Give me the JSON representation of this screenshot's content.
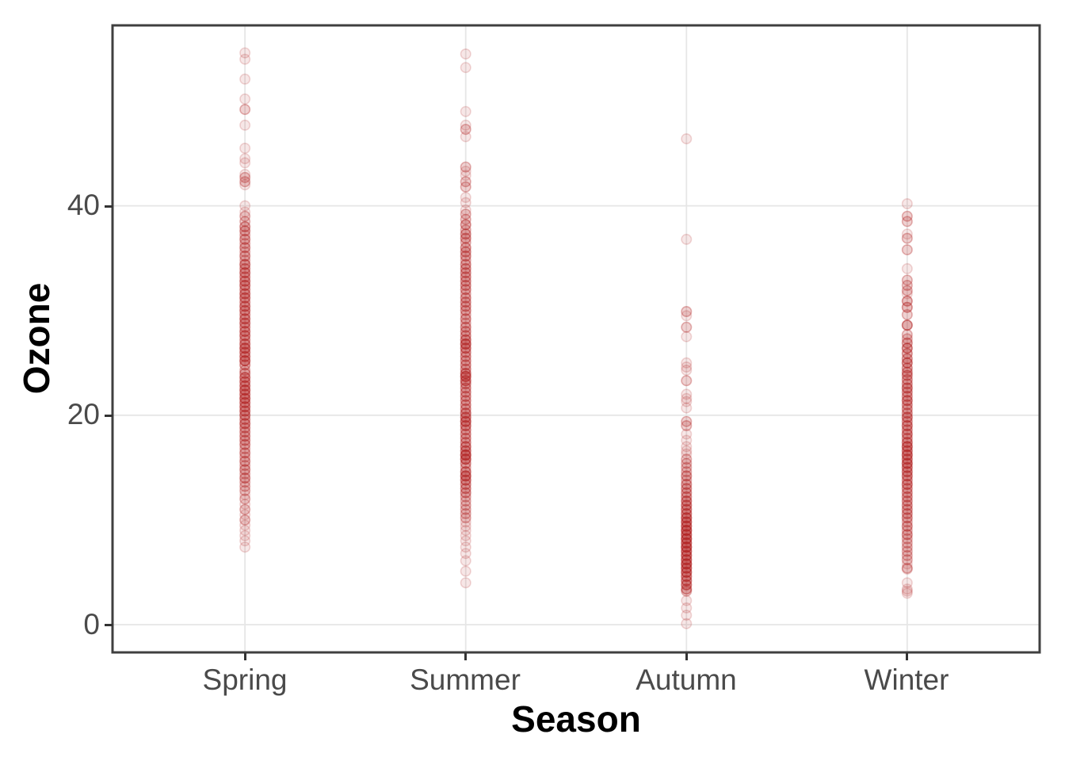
{
  "chart_data": {
    "type": "scatter",
    "subtype": "strip-plot-overplotted",
    "title": "",
    "xlabel": "Season",
    "ylabel": "Ozone",
    "categories": [
      "Spring",
      "Summer",
      "Autumn",
      "Winter"
    ],
    "y_ticks": [
      0,
      20,
      40
    ],
    "y_tick_labels": [
      "0",
      "20",
      "40"
    ],
    "ylim": [
      -2.65,
      57.23
    ],
    "grid": "major gridlines only, light gray, horizontal at ticks and vertical at each category",
    "legend": "none",
    "point_style": {
      "color": "#b22222",
      "fill_alpha": 0.11,
      "stroke_alpha": 0.18,
      "radius": 6.2,
      "darkest_observed": "#bd423c",
      "single_point_observed": "#f2dcdc"
    },
    "colors": {
      "background": "#ffffff",
      "panel_border": "#3f3f3f",
      "gridline": "#e6e6e6",
      "tick_mark": "#333333",
      "tick_text": "#4a4a4a",
      "title_text": "#000000"
    },
    "series": [
      {
        "name": "Spring",
        "value_range": [
          7.4,
          54.6
        ],
        "points_value_count": [
          [
            54.6,
            1
          ],
          [
            54.0,
            1
          ],
          [
            52.1,
            1
          ],
          [
            50.2,
            1
          ],
          [
            49.2,
            2
          ],
          [
            47.7,
            1
          ],
          [
            45.5,
            1
          ],
          [
            44.5,
            1
          ],
          [
            44.1,
            1
          ],
          [
            43.0,
            1
          ],
          [
            42.7,
            2
          ],
          [
            42.3,
            2
          ],
          [
            42.0,
            1
          ],
          [
            40.0,
            1
          ],
          [
            39.4,
            1
          ],
          [
            39.0,
            2
          ],
          [
            38.5,
            2
          ],
          [
            38.0,
            3
          ],
          [
            37.6,
            3
          ],
          [
            37.2,
            2
          ],
          [
            36.8,
            3
          ],
          [
            36.4,
            2
          ],
          [
            36.0,
            3
          ],
          [
            35.6,
            2
          ],
          [
            35.2,
            3
          ],
          [
            34.8,
            2
          ],
          [
            34.4,
            4
          ],
          [
            34.0,
            3
          ],
          [
            33.6,
            4
          ],
          [
            33.2,
            3
          ],
          [
            32.8,
            4
          ],
          [
            32.4,
            4
          ],
          [
            32.0,
            3
          ],
          [
            31.6,
            4
          ],
          [
            31.2,
            4
          ],
          [
            30.8,
            3
          ],
          [
            30.4,
            4
          ],
          [
            30.0,
            4
          ],
          [
            29.6,
            3
          ],
          [
            29.2,
            4
          ],
          [
            28.8,
            4
          ],
          [
            28.4,
            3
          ],
          [
            28.0,
            4
          ],
          [
            27.6,
            4
          ],
          [
            27.2,
            3
          ],
          [
            26.8,
            4
          ],
          [
            26.4,
            5
          ],
          [
            26.0,
            4
          ],
          [
            25.6,
            4
          ],
          [
            25.2,
            5
          ],
          [
            24.8,
            3
          ],
          [
            24.3,
            2
          ],
          [
            24.0,
            3
          ],
          [
            23.6,
            4
          ],
          [
            23.2,
            4
          ],
          [
            22.8,
            4
          ],
          [
            22.4,
            5
          ],
          [
            22.0,
            4
          ],
          [
            21.6,
            5
          ],
          [
            21.2,
            4
          ],
          [
            20.8,
            4
          ],
          [
            20.4,
            4
          ],
          [
            20.0,
            4
          ],
          [
            19.6,
            3
          ],
          [
            19.2,
            4
          ],
          [
            18.8,
            3
          ],
          [
            18.4,
            3
          ],
          [
            18.0,
            3
          ],
          [
            17.6,
            3
          ],
          [
            17.2,
            3
          ],
          [
            16.8,
            2
          ],
          [
            16.4,
            3
          ],
          [
            16.0,
            2
          ],
          [
            15.6,
            3
          ],
          [
            15.2,
            2
          ],
          [
            14.8,
            3
          ],
          [
            14.4,
            2
          ],
          [
            14.0,
            3
          ],
          [
            13.6,
            2
          ],
          [
            13.2,
            2
          ],
          [
            12.8,
            2
          ],
          [
            12.4,
            1
          ],
          [
            12.0,
            2
          ],
          [
            11.5,
            1
          ],
          [
            11.0,
            2
          ],
          [
            10.5,
            1
          ],
          [
            10.0,
            2
          ],
          [
            9.5,
            1
          ],
          [
            9.0,
            1
          ],
          [
            8.5,
            1
          ],
          [
            8.0,
            1
          ],
          [
            7.4,
            1
          ]
        ]
      },
      {
        "name": "Summer",
        "value_range": [
          4.0,
          54.5
        ],
        "points_value_count": [
          [
            54.5,
            1
          ],
          [
            53.2,
            1
          ],
          [
            49.0,
            1
          ],
          [
            47.7,
            1
          ],
          [
            47.3,
            2
          ],
          [
            46.6,
            1
          ],
          [
            43.7,
            2
          ],
          [
            43.3,
            1
          ],
          [
            42.9,
            1
          ],
          [
            42.3,
            2
          ],
          [
            41.8,
            2
          ],
          [
            40.8,
            1
          ],
          [
            40.3,
            1
          ],
          [
            39.6,
            1
          ],
          [
            39.2,
            2
          ],
          [
            38.7,
            2
          ],
          [
            38.2,
            3
          ],
          [
            37.7,
            2
          ],
          [
            37.3,
            3
          ],
          [
            36.9,
            3
          ],
          [
            36.5,
            2
          ],
          [
            36.0,
            3
          ],
          [
            35.6,
            3
          ],
          [
            35.2,
            3
          ],
          [
            34.8,
            2
          ],
          [
            34.4,
            3
          ],
          [
            34.0,
            3
          ],
          [
            33.6,
            3
          ],
          [
            33.2,
            3
          ],
          [
            32.8,
            3
          ],
          [
            32.4,
            3
          ],
          [
            32.0,
            3
          ],
          [
            31.6,
            2
          ],
          [
            31.2,
            3
          ],
          [
            30.8,
            3
          ],
          [
            30.4,
            3
          ],
          [
            30.0,
            3
          ],
          [
            29.6,
            2
          ],
          [
            29.2,
            3
          ],
          [
            28.8,
            2
          ],
          [
            28.4,
            3
          ],
          [
            28.0,
            3
          ],
          [
            27.6,
            3
          ],
          [
            27.2,
            4
          ],
          [
            26.8,
            5
          ],
          [
            26.4,
            4
          ],
          [
            26.0,
            3
          ],
          [
            25.6,
            3
          ],
          [
            25.2,
            3
          ],
          [
            24.8,
            3
          ],
          [
            24.4,
            3
          ],
          [
            24.0,
            4
          ],
          [
            23.7,
            5
          ],
          [
            23.3,
            4
          ],
          [
            23.0,
            3
          ],
          [
            22.6,
            3
          ],
          [
            22.2,
            3
          ],
          [
            21.8,
            3
          ],
          [
            21.4,
            3
          ],
          [
            21.0,
            3
          ],
          [
            20.6,
            3
          ],
          [
            20.2,
            4
          ],
          [
            19.8,
            4
          ],
          [
            19.4,
            5
          ],
          [
            19.0,
            4
          ],
          [
            18.6,
            3
          ],
          [
            18.2,
            3
          ],
          [
            17.8,
            3
          ],
          [
            17.4,
            3
          ],
          [
            17.0,
            4
          ],
          [
            16.6,
            4
          ],
          [
            16.2,
            6
          ],
          [
            15.8,
            5
          ],
          [
            15.4,
            3
          ],
          [
            15.0,
            2
          ],
          [
            14.6,
            4
          ],
          [
            14.2,
            5
          ],
          [
            13.8,
            4
          ],
          [
            13.4,
            3
          ],
          [
            13.0,
            3
          ],
          [
            12.6,
            3
          ],
          [
            12.2,
            2
          ],
          [
            11.8,
            2
          ],
          [
            11.4,
            2
          ],
          [
            11.0,
            2
          ],
          [
            10.6,
            2
          ],
          [
            10.2,
            2
          ],
          [
            9.8,
            1
          ],
          [
            9.4,
            1
          ],
          [
            9.0,
            1
          ],
          [
            8.5,
            1
          ],
          [
            8.0,
            1
          ],
          [
            7.4,
            1
          ],
          [
            6.8,
            1
          ],
          [
            6.1,
            1
          ],
          [
            5.1,
            1
          ],
          [
            4.0,
            1
          ]
        ]
      },
      {
        "name": "Autumn",
        "value_range": [
          0.1,
          46.4
        ],
        "points_value_count": [
          [
            46.4,
            1
          ],
          [
            36.8,
            1
          ],
          [
            29.9,
            2
          ],
          [
            29.5,
            1
          ],
          [
            28.4,
            2
          ],
          [
            27.5,
            1
          ],
          [
            25.0,
            1
          ],
          [
            24.6,
            1
          ],
          [
            24.3,
            1
          ],
          [
            23.3,
            2
          ],
          [
            22.0,
            1
          ],
          [
            21.6,
            1
          ],
          [
            21.3,
            1
          ],
          [
            20.7,
            1
          ],
          [
            19.4,
            2
          ],
          [
            19.0,
            2
          ],
          [
            18.2,
            1
          ],
          [
            17.6,
            1
          ],
          [
            17.0,
            1
          ],
          [
            16.6,
            1
          ],
          [
            16.3,
            1
          ],
          [
            15.8,
            2
          ],
          [
            15.4,
            2
          ],
          [
            15.0,
            2
          ],
          [
            14.6,
            2
          ],
          [
            14.2,
            3
          ],
          [
            13.8,
            2
          ],
          [
            13.4,
            3
          ],
          [
            13.0,
            3
          ],
          [
            12.6,
            3
          ],
          [
            12.2,
            3
          ],
          [
            11.8,
            4
          ],
          [
            11.4,
            4
          ],
          [
            11.0,
            4
          ],
          [
            10.6,
            4
          ],
          [
            10.2,
            5
          ],
          [
            9.8,
            5
          ],
          [
            9.4,
            5
          ],
          [
            9.0,
            6
          ],
          [
            8.6,
            5
          ],
          [
            8.2,
            6
          ],
          [
            7.8,
            5
          ],
          [
            7.4,
            6
          ],
          [
            7.0,
            5
          ],
          [
            6.6,
            5
          ],
          [
            6.2,
            5
          ],
          [
            5.8,
            6
          ],
          [
            5.4,
            5
          ],
          [
            5.0,
            5
          ],
          [
            4.6,
            4
          ],
          [
            4.2,
            4
          ],
          [
            3.8,
            4
          ],
          [
            3.4,
            3
          ],
          [
            3.2,
            2
          ],
          [
            2.3,
            1
          ],
          [
            1.6,
            1
          ],
          [
            0.9,
            1
          ],
          [
            0.1,
            1
          ]
        ]
      },
      {
        "name": "Winter",
        "value_range": [
          3.0,
          40.2
        ],
        "points_value_count": [
          [
            40.2,
            1
          ],
          [
            39.0,
            2
          ],
          [
            38.5,
            2
          ],
          [
            37.3,
            1
          ],
          [
            36.9,
            2
          ],
          [
            35.8,
            2
          ],
          [
            34.0,
            1
          ],
          [
            32.9,
            2
          ],
          [
            32.4,
            2
          ],
          [
            31.9,
            2
          ],
          [
            31.6,
            1
          ],
          [
            30.9,
            3
          ],
          [
            30.3,
            3
          ],
          [
            29.6,
            2
          ],
          [
            28.6,
            4
          ],
          [
            27.7,
            2
          ],
          [
            27.3,
            2
          ],
          [
            26.9,
            3
          ],
          [
            26.4,
            4
          ],
          [
            25.9,
            3
          ],
          [
            25.4,
            3
          ],
          [
            25.0,
            4
          ],
          [
            24.5,
            3
          ],
          [
            24.1,
            3
          ],
          [
            23.8,
            3
          ],
          [
            23.4,
            3
          ],
          [
            23.0,
            3
          ],
          [
            22.6,
            4
          ],
          [
            22.2,
            3
          ],
          [
            21.8,
            3
          ],
          [
            21.4,
            4
          ],
          [
            21.0,
            3
          ],
          [
            20.6,
            3
          ],
          [
            20.2,
            3
          ],
          [
            19.8,
            4
          ],
          [
            19.4,
            3
          ],
          [
            19.0,
            4
          ],
          [
            18.6,
            3
          ],
          [
            18.2,
            4
          ],
          [
            17.8,
            3
          ],
          [
            17.4,
            4
          ],
          [
            17.0,
            5
          ],
          [
            16.6,
            4
          ],
          [
            16.2,
            5
          ],
          [
            15.8,
            4
          ],
          [
            15.4,
            5
          ],
          [
            15.0,
            4
          ],
          [
            14.6,
            4
          ],
          [
            14.2,
            4
          ],
          [
            13.8,
            3
          ],
          [
            13.4,
            4
          ],
          [
            13.0,
            3
          ],
          [
            12.6,
            3
          ],
          [
            12.2,
            3
          ],
          [
            11.8,
            3
          ],
          [
            11.4,
            3
          ],
          [
            11.0,
            3
          ],
          [
            10.6,
            3
          ],
          [
            10.2,
            3
          ],
          [
            9.8,
            2
          ],
          [
            9.4,
            3
          ],
          [
            9.0,
            2
          ],
          [
            8.6,
            3
          ],
          [
            8.2,
            2
          ],
          [
            7.8,
            2
          ],
          [
            7.4,
            2
          ],
          [
            7.0,
            2
          ],
          [
            6.6,
            2
          ],
          [
            6.2,
            2
          ],
          [
            5.8,
            1
          ],
          [
            5.4,
            2
          ],
          [
            5.3,
            1
          ],
          [
            4.0,
            1
          ],
          [
            3.4,
            1
          ],
          [
            3.2,
            1
          ],
          [
            3.0,
            1
          ]
        ]
      }
    ]
  }
}
